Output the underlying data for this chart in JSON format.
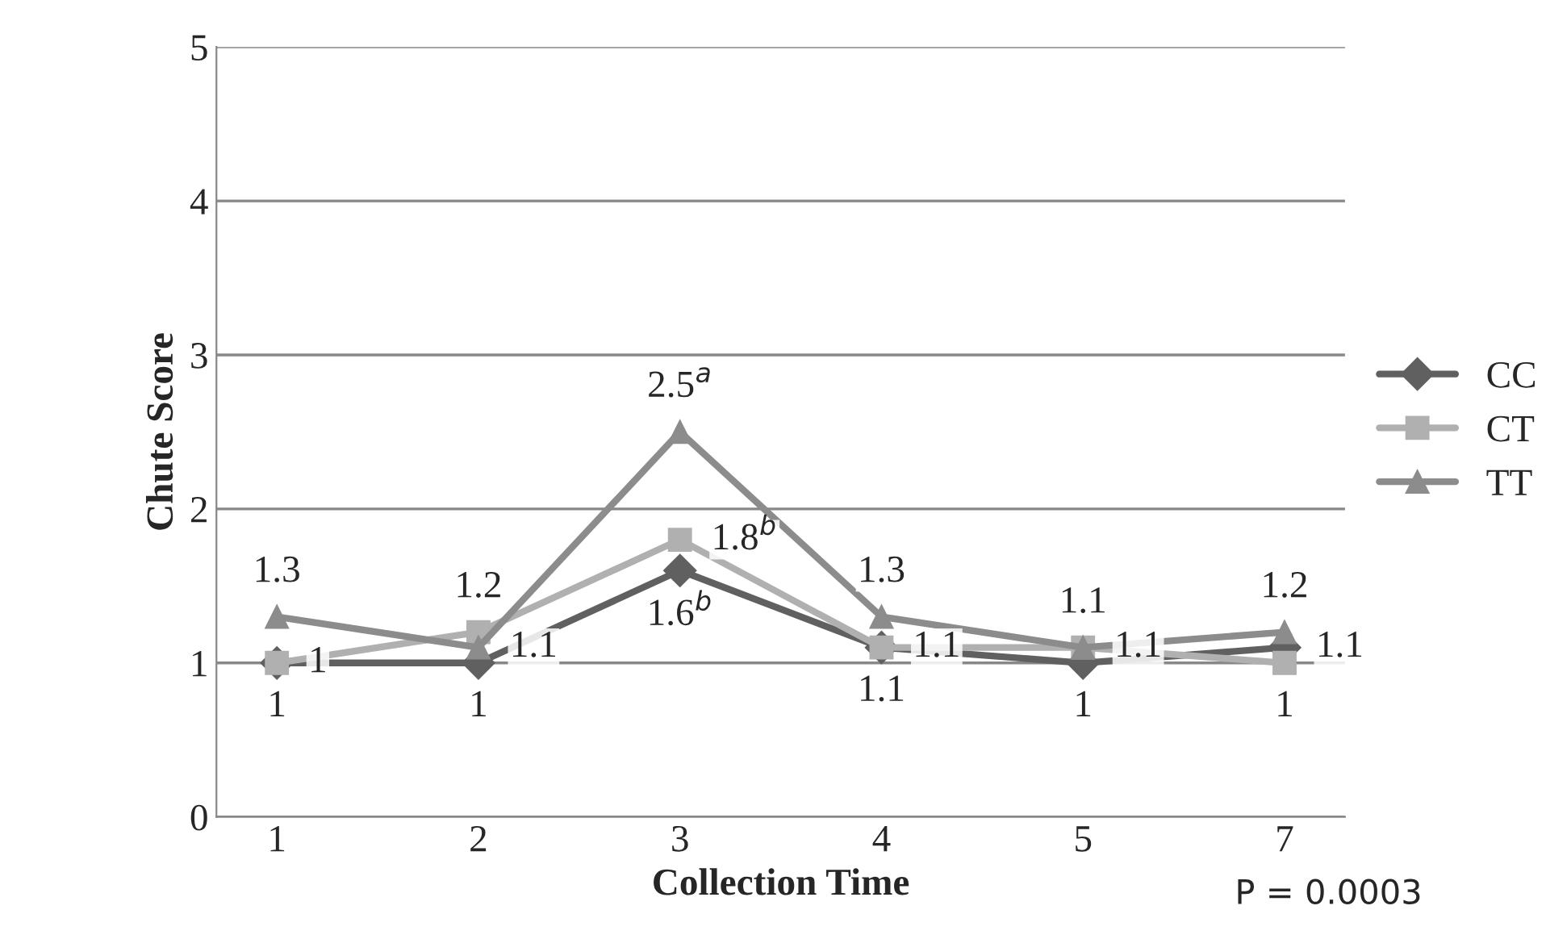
{
  "chart_data": {
    "type": "line",
    "xlabel": "Collection Time",
    "ylabel": "Chute Score",
    "categories": [
      "1",
      "2",
      "3",
      "4",
      "5",
      "7"
    ],
    "ylim": [
      0,
      5
    ],
    "yticks": [
      0,
      1,
      2,
      3,
      4,
      5
    ],
    "grid": "y",
    "legend": "right",
    "series": [
      {
        "name": "CC",
        "color": "#606060",
        "marker": "diamond",
        "values": [
          1,
          1,
          1.6,
          1.1,
          1,
          1.1
        ],
        "value_labels": [
          "1",
          "1",
          "1.6$^{b}$",
          "1.1",
          "1",
          "1.1"
        ]
      },
      {
        "name": "CT",
        "color": "#b0b0b0",
        "marker": "square",
        "values": [
          1,
          1.2,
          1.8,
          1.1,
          1.1,
          1
        ],
        "value_labels": [
          "1",
          "1.2",
          "1.8$^{b}$",
          "1.1",
          "1.1",
          "1"
        ]
      },
      {
        "name": "TT",
        "color": "#8c8c8c",
        "marker": "triangle",
        "values": [
          1.3,
          1.1,
          2.5,
          1.3,
          1.1,
          1.2
        ],
        "value_labels": [
          "1.3",
          "1.1",
          "2.5$^{a}$",
          "1.3",
          "1.1",
          "1.2"
        ]
      }
    ],
    "annotations": [
      "P = 0.0003"
    ]
  }
}
